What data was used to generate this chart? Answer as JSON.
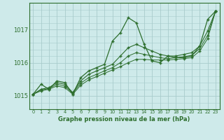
{
  "title": "Graphe pression niveau de la mer (hPa)",
  "background_color": "#ceeaea",
  "grid_color": "#a8cccc",
  "line_color": "#2d6e2d",
  "xlim": [
    -0.5,
    23.5
  ],
  "ylim": [
    1014.6,
    1017.8
  ],
  "yticks": [
    1015,
    1016,
    1017
  ],
  "xticks": [
    0,
    1,
    2,
    3,
    4,
    5,
    6,
    7,
    8,
    9,
    10,
    11,
    12,
    13,
    14,
    15,
    16,
    17,
    18,
    19,
    20,
    21,
    22,
    23
  ],
  "series": [
    [
      1015.05,
      1015.35,
      1015.2,
      1015.45,
      1015.4,
      1015.05,
      1015.55,
      1015.75,
      1015.85,
      1015.95,
      1016.65,
      1016.9,
      1017.35,
      1017.2,
      1016.55,
      1016.05,
      1016.0,
      1016.2,
      1016.15,
      1016.15,
      1016.2,
      1016.5,
      1017.3,
      1017.55
    ],
    [
      1015.05,
      1015.2,
      1015.25,
      1015.4,
      1015.35,
      1015.1,
      1015.45,
      1015.65,
      1015.75,
      1015.85,
      1015.95,
      1016.2,
      1016.45,
      1016.55,
      1016.45,
      1016.35,
      1016.25,
      1016.2,
      1016.2,
      1016.25,
      1016.3,
      1016.5,
      1016.95,
      1017.55
    ],
    [
      1015.05,
      1015.18,
      1015.22,
      1015.35,
      1015.3,
      1015.08,
      1015.38,
      1015.55,
      1015.65,
      1015.75,
      1015.85,
      1016.0,
      1016.2,
      1016.3,
      1016.25,
      1016.2,
      1016.15,
      1016.12,
      1016.15,
      1016.18,
      1016.22,
      1016.42,
      1016.82,
      1017.55
    ],
    [
      1015.05,
      1015.15,
      1015.2,
      1015.3,
      1015.25,
      1015.05,
      1015.32,
      1015.48,
      1015.58,
      1015.68,
      1015.78,
      1015.88,
      1016.0,
      1016.1,
      1016.1,
      1016.08,
      1016.08,
      1016.08,
      1016.1,
      1016.12,
      1016.15,
      1016.35,
      1016.72,
      1017.55
    ]
  ]
}
